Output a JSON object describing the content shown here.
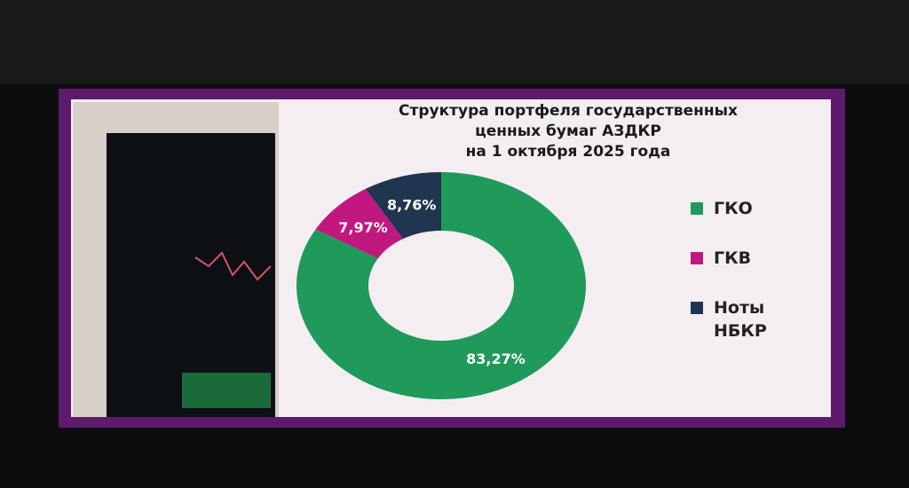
{
  "chart_data": {
    "type": "pie",
    "donut": true,
    "title": [
      "Структура портфеля государственных",
      "ценных бумаг АЗДКР",
      "на 1 октября 2025 года"
    ],
    "categories": [
      "ГКО",
      "ГКВ",
      "Ноты НБКР"
    ],
    "values": [
      83.27,
      7.97,
      8.76
    ],
    "value_labels": [
      "83,27%",
      "7,97%",
      "8,76%"
    ],
    "colors": [
      "#1f9a5a",
      "#c0187f",
      "#1f3550"
    ]
  }
}
